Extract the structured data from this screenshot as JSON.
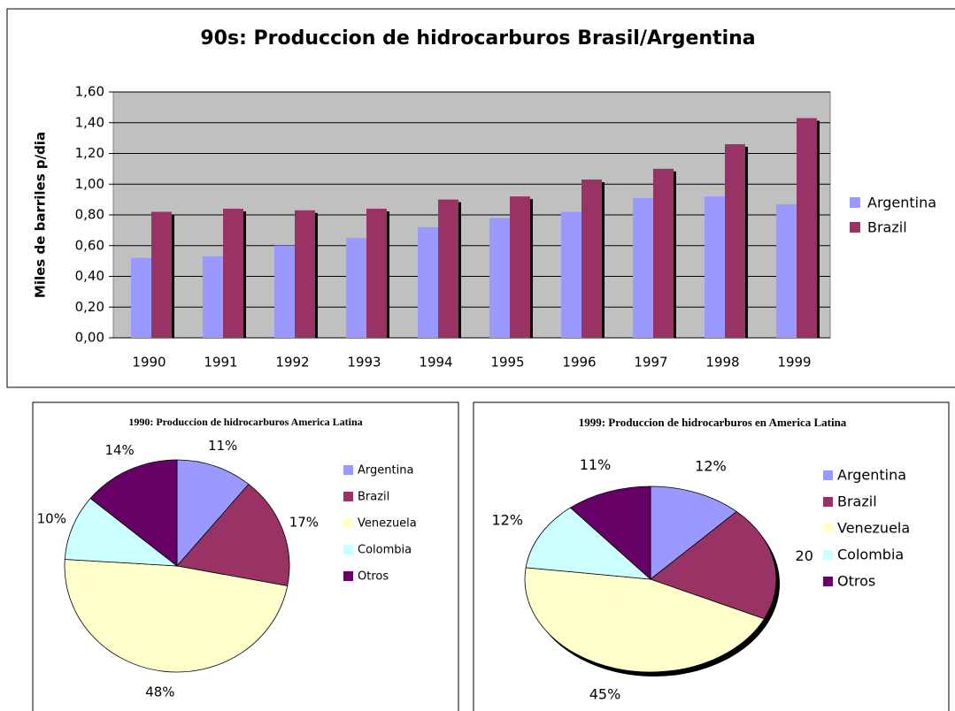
{
  "chart_data": [
    {
      "type": "bar",
      "title": "90s: Produccion de hidrocarburos Brasil/Argentina",
      "y_label": "Miles de barriles p/dia",
      "categories": [
        "1990",
        "1991",
        "1992",
        "1993",
        "1994",
        "1995",
        "1996",
        "1997",
        "1998",
        "1999"
      ],
      "series": [
        {
          "name": "Argentina",
          "color": "#9999ff",
          "values": [
            0.52,
            0.53,
            0.6,
            0.65,
            0.72,
            0.78,
            0.82,
            0.91,
            0.92,
            0.87
          ]
        },
        {
          "name": "Brazil",
          "color": "#993366",
          "values": [
            0.82,
            0.84,
            0.83,
            0.84,
            0.9,
            0.92,
            1.03,
            1.1,
            1.26,
            1.43
          ]
        }
      ],
      "ylim": [
        0,
        1.6
      ],
      "yticks": [
        {
          "value": 0,
          "label": "0,00"
        },
        {
          "value": 0.2,
          "label": "0,20"
        },
        {
          "value": 0.4,
          "label": "0,40"
        },
        {
          "value": 0.6,
          "label": "0,60"
        },
        {
          "value": 0.8,
          "label": "0,80"
        },
        {
          "value": 1.0,
          "label": "1,00"
        },
        {
          "value": 1.2,
          "label": "1,20"
        },
        {
          "value": 1.4,
          "label": "1,40"
        },
        {
          "value": 1.6,
          "label": "1,60"
        }
      ],
      "grid": true
    },
    {
      "type": "pie",
      "title": "1990: Produccion de hidrocarburos America Latina",
      "categories": [
        "Argentina",
        "Brazil",
        "Venezuela",
        "Colombia",
        "Otros"
      ],
      "colors": [
        "#9999ff",
        "#993366",
        "#ffffcc",
        "#ccffff",
        "#660066"
      ],
      "values": [
        11,
        17,
        48,
        10,
        14
      ],
      "value_labels": [
        "11%",
        "17%",
        "48%",
        "10%",
        "14%"
      ]
    },
    {
      "type": "pie",
      "title": "1999: Produccion de hidrocarburos en America Latina",
      "categories": [
        "Argentina",
        "Brazil",
        "Venezuela",
        "Colombia",
        "Otros"
      ],
      "colors": [
        "#9999ff",
        "#993366",
        "#ffffcc",
        "#ccffff",
        "#660066"
      ],
      "values": [
        12,
        20,
        45,
        12,
        11
      ],
      "value_labels": [
        "12%",
        "20%",
        "45%",
        "12%",
        "11%"
      ]
    }
  ]
}
